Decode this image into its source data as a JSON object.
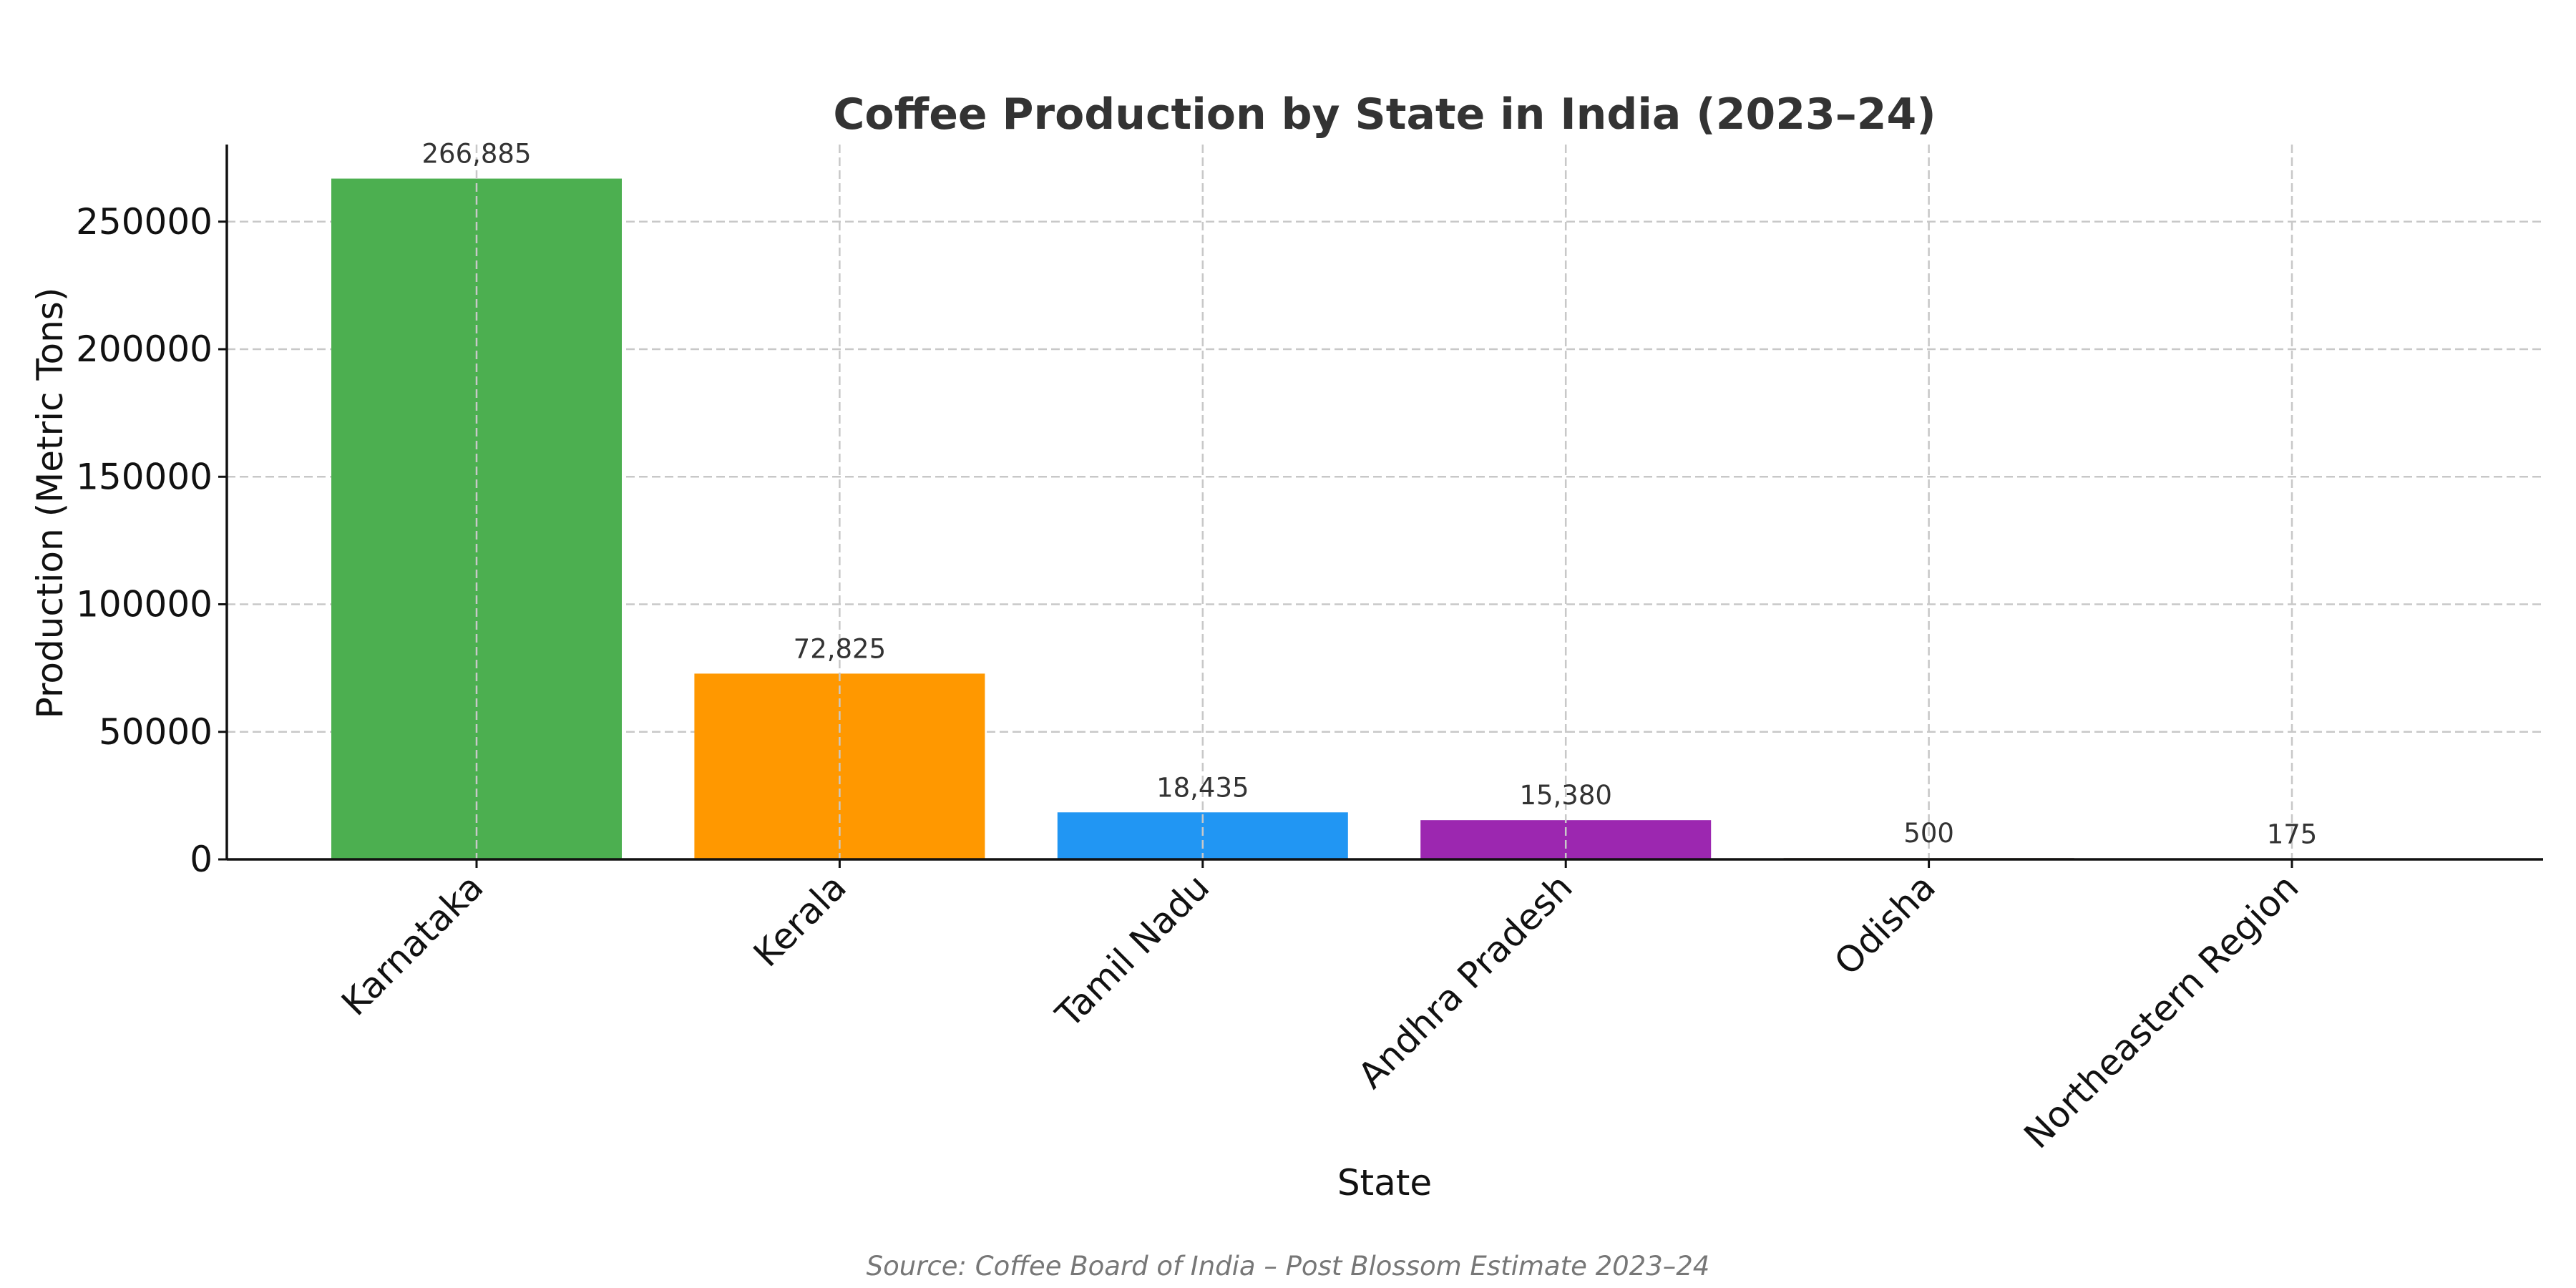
{
  "chart_data": {
    "type": "bar",
    "title": "Coffee Production by State in India (2023–24)",
    "xlabel": "State",
    "ylabel": "Production (Metric Tons)",
    "categories": [
      "Karnataka",
      "Kerala",
      "Tamil Nadu",
      "Andhra Pradesh",
      "Odisha",
      "Northeastern Region"
    ],
    "values": [
      266885,
      72825,
      18435,
      15380,
      500,
      175
    ],
    "data_labels": [
      "266,885",
      "72,825",
      "18,435",
      "15,380",
      "500",
      "175"
    ],
    "colors": [
      "#4caf50",
      "#ff9800",
      "#2196f3",
      "#9c27b0",
      "#795548",
      "#607d8b"
    ],
    "yticks": [
      0,
      50000,
      100000,
      150000,
      200000,
      250000
    ],
    "ylim": [
      0,
      280230
    ],
    "grid": true,
    "source": "Source: Coffee Board of India – Post Blossom Estimate 2023–24"
  }
}
